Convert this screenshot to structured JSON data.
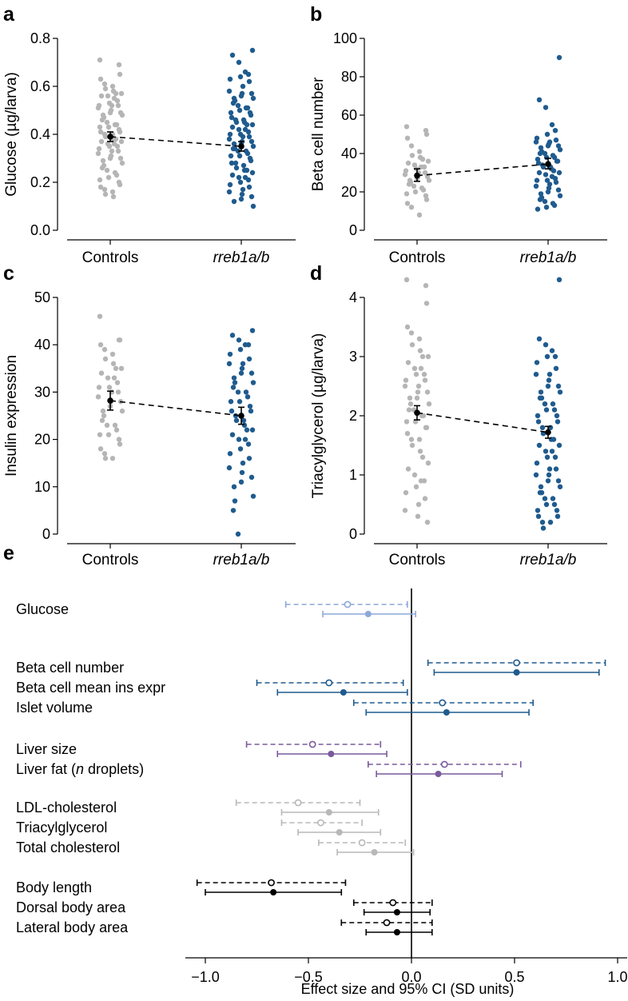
{
  "colors": {
    "control": "#b5b5b5",
    "mutant": "#1f5b8e",
    "mean": "#000000",
    "glucose_grp": "#8ca9d8",
    "islet_grp": "#1f5b8e",
    "liver_grp": "#7a5a9c",
    "lipid_grp": "#b8b8b8",
    "body_grp": "#000000"
  },
  "chart_data": [
    {
      "panel": "a",
      "type": "scatter",
      "ylabel": "Glucose (µg/larva)",
      "categories": [
        "Controls",
        "rreb1a/b"
      ],
      "ylim": [
        0,
        0.8
      ],
      "yticks": [
        0.0,
        0.2,
        0.4,
        0.6,
        0.8
      ],
      "ytick_labels": [
        "0.0",
        "0.2",
        "0.4",
        "0.6",
        "0.8"
      ],
      "means": [
        0.39,
        0.35
      ],
      "ci_low": [
        0.37,
        0.33
      ],
      "ci_high": [
        0.41,
        0.37
      ],
      "mean_line": "dashed",
      "series": [
        {
          "values": [
            0.71,
            0.69,
            0.65,
            0.63,
            0.61,
            0.6,
            0.59,
            0.58,
            0.57,
            0.57,
            0.56,
            0.56,
            0.55,
            0.54,
            0.53,
            0.52,
            0.52,
            0.52,
            0.51,
            0.5,
            0.49,
            0.49,
            0.48,
            0.48,
            0.47,
            0.46,
            0.45,
            0.44,
            0.44,
            0.43,
            0.43,
            0.42,
            0.41,
            0.41,
            0.4,
            0.4,
            0.39,
            0.38,
            0.38,
            0.37,
            0.37,
            0.36,
            0.36,
            0.35,
            0.35,
            0.34,
            0.33,
            0.33,
            0.32,
            0.31,
            0.3,
            0.3,
            0.29,
            0.28,
            0.27,
            0.26,
            0.25,
            0.24,
            0.23,
            0.22,
            0.21,
            0.2,
            0.19,
            0.18,
            0.17,
            0.16,
            0.15,
            0.14
          ]
        },
        {
          "values": [
            0.75,
            0.73,
            0.7,
            0.66,
            0.65,
            0.64,
            0.63,
            0.62,
            0.6,
            0.58,
            0.57,
            0.57,
            0.56,
            0.55,
            0.55,
            0.54,
            0.53,
            0.52,
            0.51,
            0.51,
            0.5,
            0.49,
            0.49,
            0.48,
            0.47,
            0.46,
            0.46,
            0.45,
            0.45,
            0.44,
            0.44,
            0.43,
            0.42,
            0.42,
            0.41,
            0.4,
            0.4,
            0.39,
            0.39,
            0.38,
            0.37,
            0.37,
            0.36,
            0.36,
            0.35,
            0.34,
            0.34,
            0.33,
            0.33,
            0.32,
            0.31,
            0.31,
            0.3,
            0.29,
            0.28,
            0.28,
            0.27,
            0.26,
            0.25,
            0.25,
            0.24,
            0.23,
            0.22,
            0.22,
            0.21,
            0.2,
            0.19,
            0.18,
            0.17,
            0.16,
            0.15,
            0.14,
            0.13,
            0.12,
            0.1
          ]
        }
      ]
    },
    {
      "panel": "b",
      "type": "scatter",
      "ylabel": "Beta cell number",
      "categories": [
        "Controls",
        "rreb1a/b"
      ],
      "ylim": [
        0,
        100
      ],
      "yticks": [
        0,
        20,
        40,
        60,
        80,
        100
      ],
      "ytick_labels": [
        "0",
        "20",
        "40",
        "60",
        "80",
        "100"
      ],
      "means": [
        28.5,
        34.5
      ],
      "ci_low": [
        25.5,
        32
      ],
      "ci_high": [
        32,
        37.5
      ],
      "mean_line": "dashed",
      "series": [
        {
          "values": [
            54,
            52,
            50,
            48,
            44,
            41,
            39,
            38,
            37,
            36,
            35,
            34,
            33,
            33,
            32,
            31,
            30,
            30,
            29,
            28,
            28,
            27,
            26,
            26,
            25,
            24,
            23,
            22,
            21,
            20,
            19,
            18,
            16,
            14,
            12,
            8
          ]
        },
        {
          "values": [
            90,
            68,
            64,
            55,
            52,
            50,
            48,
            47,
            46,
            46,
            45,
            44,
            44,
            43,
            42,
            41,
            40,
            40,
            39,
            38,
            38,
            37,
            36,
            36,
            35,
            34,
            33,
            33,
            32,
            31,
            30,
            30,
            29,
            28,
            27,
            26,
            26,
            25,
            24,
            23,
            22,
            21,
            20,
            19,
            18,
            17,
            16,
            15,
            14,
            13,
            12,
            11
          ]
        }
      ]
    },
    {
      "panel": "c",
      "type": "scatter",
      "ylabel": "Insulin expression",
      "categories": [
        "Controls",
        "rreb1a/b"
      ],
      "ylim": [
        0,
        50
      ],
      "yticks": [
        0,
        10,
        20,
        30,
        40,
        50
      ],
      "ytick_labels": [
        "0",
        "10",
        "20",
        "30",
        "40",
        "50"
      ],
      "means": [
        28.2,
        25
      ],
      "ci_low": [
        26.2,
        23.2
      ],
      "ci_high": [
        30.2,
        26.8
      ],
      "mean_line": "dashed",
      "series": [
        {
          "values": [
            46,
            41,
            41,
            40,
            39,
            38,
            37,
            36,
            35,
            35,
            34,
            33,
            33,
            32,
            31,
            31,
            30,
            30,
            29,
            28,
            28,
            27,
            26,
            26,
            25,
            24,
            23,
            23,
            22,
            21,
            21,
            20,
            19,
            18,
            17,
            16,
            16
          ]
        },
        {
          "values": [
            43,
            42,
            41,
            40,
            40,
            39,
            38,
            37,
            36,
            36,
            35,
            34,
            34,
            33,
            32,
            32,
            31,
            30,
            30,
            29,
            28,
            28,
            27,
            26,
            26,
            25,
            24,
            24,
            23,
            22,
            22,
            21,
            20,
            20,
            19,
            18,
            17,
            16,
            15,
            14,
            13,
            12,
            11,
            10,
            8,
            7,
            5,
            0
          ]
        }
      ]
    },
    {
      "panel": "d",
      "type": "scatter",
      "ylabel": "Triacylglycerol (µg/larva)",
      "categories": [
        "Controls",
        "rreb1a/b"
      ],
      "ylim": [
        0,
        4.3
      ],
      "yticks": [
        0,
        1,
        2,
        3,
        4
      ],
      "ytick_labels": [
        "0",
        "1",
        "2",
        "3",
        "4"
      ],
      "means": [
        2.05,
        1.72
      ],
      "ci_low": [
        1.93,
        1.62
      ],
      "ci_high": [
        2.17,
        1.82
      ],
      "mean_line": "dashed",
      "series": [
        {
          "values": [
            4.3,
            4.2,
            3.9,
            3.5,
            3.4,
            3.3,
            3.2,
            3.1,
            3.0,
            3.0,
            2.9,
            2.8,
            2.8,
            2.7,
            2.7,
            2.6,
            2.6,
            2.5,
            2.5,
            2.4,
            2.4,
            2.3,
            2.3,
            2.2,
            2.2,
            2.1,
            2.1,
            2.0,
            2.0,
            1.9,
            1.9,
            1.8,
            1.8,
            1.7,
            1.6,
            1.6,
            1.5,
            1.4,
            1.3,
            1.2,
            1.1,
            1.0,
            0.9,
            0.9,
            0.8,
            0.7,
            0.6,
            0.5,
            0.4,
            0.3,
            0.2
          ]
        },
        {
          "values": [
            4.3,
            3.3,
            3.2,
            3.1,
            3.0,
            3.0,
            2.9,
            2.8,
            2.7,
            2.7,
            2.6,
            2.5,
            2.5,
            2.4,
            2.4,
            2.3,
            2.3,
            2.2,
            2.2,
            2.1,
            2.1,
            2.0,
            2.0,
            1.9,
            1.9,
            1.8,
            1.8,
            1.7,
            1.6,
            1.6,
            1.5,
            1.5,
            1.4,
            1.4,
            1.3,
            1.3,
            1.2,
            1.1,
            1.1,
            1.0,
            1.0,
            0.9,
            0.9,
            0.8,
            0.8,
            0.7,
            0.7,
            0.6,
            0.6,
            0.5,
            0.5,
            0.4,
            0.4,
            0.3,
            0.3,
            0.2,
            0.2,
            0.1
          ]
        }
      ]
    },
    {
      "panel": "e",
      "type": "forest",
      "xlabel": "Effect size and 95% CI (SD units)",
      "xlim": [
        -1.1,
        1.05
      ],
      "xticks": [
        -1.0,
        -0.5,
        0.0,
        0.5,
        1.0
      ],
      "xtick_labels": [
        "−1.0",
        "−0.5",
        "0.0",
        "0.5",
        "1.0"
      ],
      "groups": [
        {
          "color": "glucose_grp",
          "rows": [
            {
              "label": "Glucose",
              "open": {
                "est": -0.31,
                "lo": -0.61,
                "hi": -0.02
              },
              "filled": {
                "est": -0.21,
                "lo": -0.43,
                "hi": 0.02
              }
            }
          ]
        },
        {
          "color": "islet_grp",
          "rows": [
            {
              "label": "Beta cell number",
              "open": {
                "est": 0.51,
                "lo": 0.08,
                "hi": 0.94
              },
              "filled": {
                "est": 0.51,
                "lo": 0.11,
                "hi": 0.91
              }
            },
            {
              "label": "Beta cell mean ins expr",
              "open": {
                "est": -0.4,
                "lo": -0.75,
                "hi": -0.04
              },
              "filled": {
                "est": -0.33,
                "lo": -0.65,
                "hi": -0.02
              }
            },
            {
              "label": "Islet volume",
              "open": {
                "est": 0.15,
                "lo": -0.28,
                "hi": 0.59
              },
              "filled": {
                "est": 0.17,
                "lo": -0.22,
                "hi": 0.57
              }
            }
          ]
        },
        {
          "color": "liver_grp",
          "rows": [
            {
              "label": "Liver size",
              "open": {
                "est": -0.48,
                "lo": -0.8,
                "hi": -0.15
              },
              "filled": {
                "est": -0.39,
                "lo": -0.65,
                "hi": -0.12
              }
            },
            {
              "label": "Liver fat (n droplets)",
              "open": {
                "est": 0.16,
                "lo": -0.21,
                "hi": 0.53
              },
              "filled": {
                "est": 0.13,
                "lo": -0.17,
                "hi": 0.44
              }
            }
          ]
        },
        {
          "color": "lipid_grp",
          "rows": [
            {
              "label": "LDL-cholesterol",
              "open": {
                "est": -0.55,
                "lo": -0.85,
                "hi": -0.25
              },
              "filled": {
                "est": -0.4,
                "lo": -0.63,
                "hi": -0.16
              }
            },
            {
              "label": "Triacylglycerol",
              "open": {
                "est": -0.44,
                "lo": -0.63,
                "hi": -0.24
              },
              "filled": {
                "est": -0.35,
                "lo": -0.55,
                "hi": -0.15
              }
            },
            {
              "label": "Total cholesterol",
              "open": {
                "est": -0.24,
                "lo": -0.45,
                "hi": -0.03
              },
              "filled": {
                "est": -0.18,
                "lo": -0.36,
                "hi": 0.01
              }
            }
          ]
        },
        {
          "color": "body_grp",
          "rows": [
            {
              "label": "Body length",
              "open": {
                "est": -0.68,
                "lo": -1.04,
                "hi": -0.32
              },
              "filled": {
                "est": -0.67,
                "lo": -1.0,
                "hi": -0.34
              }
            },
            {
              "label": "Dorsal body area",
              "open": {
                "est": -0.09,
                "lo": -0.28,
                "hi": 0.1
              },
              "filled": {
                "est": -0.07,
                "lo": -0.23,
                "hi": 0.09
              }
            },
            {
              "label": "Lateral body area",
              "open": {
                "est": -0.12,
                "lo": -0.34,
                "hi": 0.1
              },
              "filled": {
                "est": -0.07,
                "lo": -0.22,
                "hi": 0.1
              }
            }
          ]
        }
      ]
    }
  ]
}
